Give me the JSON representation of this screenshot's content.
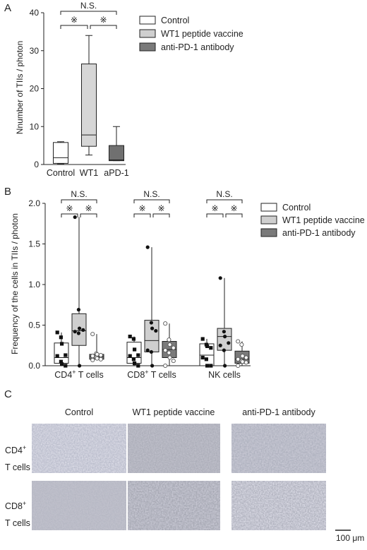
{
  "panel_letters": {
    "a": "A",
    "b": "B",
    "c": "C"
  },
  "legend": {
    "items": [
      {
        "label": "Control",
        "color": "#ffffff"
      },
      {
        "label": "WT1 peptide vaccine",
        "color": "#cfcfcf"
      },
      {
        "label": "anti-PD-1 antibody",
        "color": "#7a7a7a"
      }
    ]
  },
  "sig": {
    "ns": "N.S.",
    "star": "※"
  },
  "chart_data": [
    {
      "type": "box",
      "ylabel": "Nnumber of TIIs / photon",
      "ylim": [
        0,
        40
      ],
      "yticks": [
        0,
        10,
        20,
        30,
        40
      ],
      "categories": [
        "Control",
        "WT1",
        "aPD-1"
      ],
      "series": [
        {
          "name": "Control",
          "color": "#ffffff",
          "min": 0.2,
          "q1": 0.3,
          "median": 1.8,
          "q3": 5.8,
          "max": 6.0
        },
        {
          "name": "WT1 peptide vaccine",
          "color": "#d6d6d6",
          "min": 2.5,
          "q1": 4.8,
          "median": 7.8,
          "q3": 26.5,
          "max": 34.0
        },
        {
          "name": "anti-PD-1 antibody",
          "color": "#707070",
          "min": 1.0,
          "q1": 1.0,
          "median": 1.2,
          "q3": 5.0,
          "max": 10.0
        }
      ],
      "significance": [
        {
          "from": 0,
          "to": 1,
          "label": "※"
        },
        {
          "from": 1,
          "to": 2,
          "label": "※"
        },
        {
          "from": 0,
          "to": 2,
          "label": "N.S."
        }
      ]
    },
    {
      "type": "box",
      "ylabel": "Frequency of the cells in TIIs / photon",
      "ylim": [
        0,
        2.0
      ],
      "yticks": [
        0.0,
        0.5,
        1.0,
        1.5,
        2.0
      ],
      "groups": [
        {
          "label": "CD4⁺ T cells",
          "boxes": [
            {
              "name": "Control",
              "color": "#ffffff",
              "marker": "square",
              "min": 0.0,
              "q1": 0.03,
              "median": 0.1,
              "q3": 0.28,
              "max": 0.41,
              "points": [
                0.41,
                0.35,
                0.27,
                0.13,
                0.12,
                0.05,
                0.02,
                0.0
              ]
            },
            {
              "name": "WT1 peptide vaccine",
              "color": "#cfcfcf",
              "marker": "circle",
              "min": 0.0,
              "q1": 0.25,
              "median": 0.43,
              "q3": 0.64,
              "max": 1.83,
              "points": [
                1.83,
                0.69,
                0.46,
                0.44,
                0.42,
                0.4,
                0.0
              ]
            },
            {
              "name": "anti-PD-1 antibody",
              "color": "#7a7a7a",
              "marker": "open-circle",
              "min": 0.07,
              "q1": 0.08,
              "median": 0.11,
              "q3": 0.14,
              "max": 0.39,
              "points": [
                0.39,
                0.15,
                0.14,
                0.13,
                0.12,
                0.1,
                0.09,
                0.08,
                0.07
              ]
            }
          ]
        },
        {
          "label": "CD8⁺ T cells",
          "boxes": [
            {
              "name": "Control",
              "color": "#ffffff",
              "marker": "square",
              "min": 0.0,
              "q1": 0.03,
              "median": 0.1,
              "q3": 0.29,
              "max": 0.36,
              "points": [
                0.36,
                0.33,
                0.2,
                0.13,
                0.12,
                0.08,
                0.03,
                0.0
              ]
            },
            {
              "name": "WT1 peptide vaccine",
              "color": "#cfcfcf",
              "marker": "circle",
              "min": 0.0,
              "q1": 0.17,
              "median": 0.31,
              "q3": 0.56,
              "max": 1.46,
              "points": [
                1.46,
                0.53,
                0.46,
                0.43,
                0.19,
                0.17,
                0.0
              ]
            },
            {
              "name": "anti-PD-1 antibody",
              "color": "#7a7a7a",
              "marker": "open-circle",
              "min": 0.0,
              "q1": 0.1,
              "median": 0.2,
              "q3": 0.3,
              "max": 0.52,
              "points": [
                0.52,
                0.32,
                0.26,
                0.22,
                0.19,
                0.16,
                0.1,
                0.06,
                0.0
              ]
            }
          ]
        },
        {
          "label": "NK cells",
          "boxes": [
            {
              "name": "Control",
              "color": "#ffffff",
              "marker": "square",
              "min": 0.0,
              "q1": 0.0,
              "median": 0.13,
              "q3": 0.27,
              "max": 0.33,
              "points": [
                0.33,
                0.26,
                0.24,
                0.22,
                0.1,
                0.08,
                0.0,
                0.0
              ]
            },
            {
              "name": "WT1 peptide vaccine",
              "color": "#cfcfcf",
              "marker": "circle",
              "min": 0.0,
              "q1": 0.19,
              "median": 0.36,
              "q3": 0.46,
              "max": 1.08,
              "points": [
                1.08,
                0.42,
                0.36,
                0.28,
                0.25,
                0.19,
                0.0
              ]
            },
            {
              "name": "anti-PD-1 antibody",
              "color": "#7a7a7a",
              "marker": "open-circle",
              "min": 0.0,
              "q1": 0.03,
              "median": 0.08,
              "q3": 0.18,
              "max": 0.3,
              "points": [
                0.3,
                0.26,
                0.12,
                0.1,
                0.08,
                0.06,
                0.05,
                0.04,
                0.0
              ]
            }
          ]
        }
      ]
    }
  ],
  "images": {
    "columns": [
      "Control",
      "WT1 peptide vaccine",
      "anti-PD-1 antibody"
    ],
    "rows": [
      {
        "label_main": "CD4",
        "label_sup": "+",
        "label_sub": "T cells"
      },
      {
        "label_main": "CD8",
        "label_sup": "+",
        "label_sub": "T cells"
      }
    ],
    "scale_bar": "100 μm"
  }
}
